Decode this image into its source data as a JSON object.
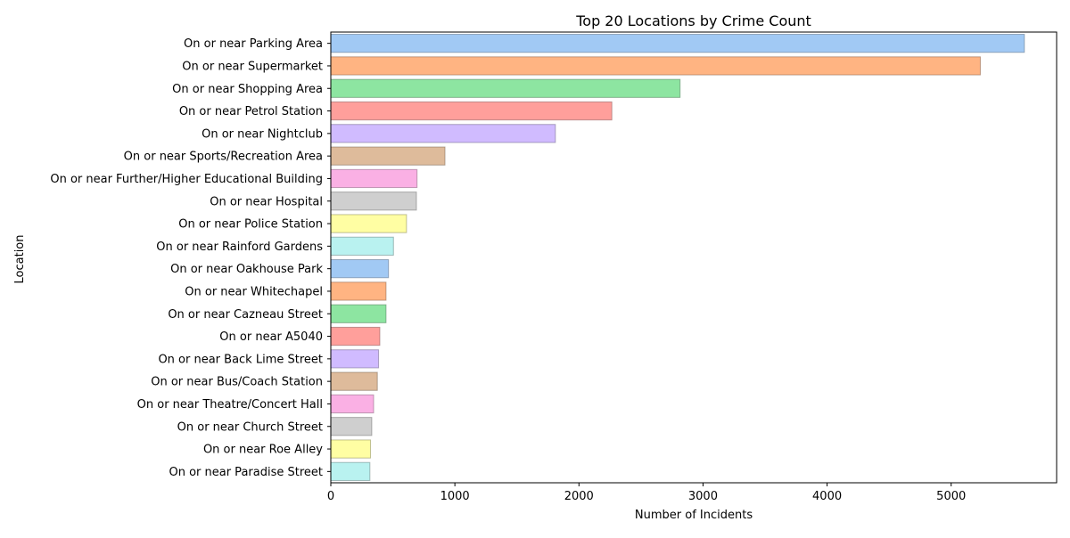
{
  "chart_data": {
    "type": "bar",
    "orientation": "horizontal",
    "title": "Top 20 Locations by Crime Count",
    "xlabel": "Number of Incidents",
    "ylabel": "Location",
    "xlim": [
      0,
      5850
    ],
    "xticks": [
      0,
      1000,
      2000,
      3000,
      4000,
      5000
    ],
    "grid": false,
    "categories": [
      "On or near Parking Area",
      "On or near Supermarket",
      "On or near Shopping Area",
      "On or near Petrol Station",
      "On or near Nightclub",
      "On or near Sports/Recreation Area",
      "On or near Further/Higher Educational Building",
      "On or near Hospital",
      "On or near Police Station",
      "On or near Rainford Gardens",
      "On or near Oakhouse Park",
      "On or near Whitechapel",
      "On or near Cazneau Street",
      "On or near A5040",
      "On or near Back Lime Street",
      "On or near Bus/Coach Station",
      "On or near Theatre/Concert Hall",
      "On or near Church Street",
      "On or near Roe Alley",
      "On or near Paradise Street"
    ],
    "values": [
      5590,
      5235,
      2815,
      2265,
      1810,
      920,
      695,
      690,
      610,
      505,
      465,
      445,
      445,
      395,
      385,
      375,
      345,
      330,
      320,
      315
    ],
    "colors": [
      "#a1c9f4",
      "#ffb482",
      "#8de5a1",
      "#ff9f9b",
      "#d0bbff",
      "#debb9b",
      "#fab0e4",
      "#cfcfcf",
      "#fffea3",
      "#b9f2f0"
    ]
  }
}
